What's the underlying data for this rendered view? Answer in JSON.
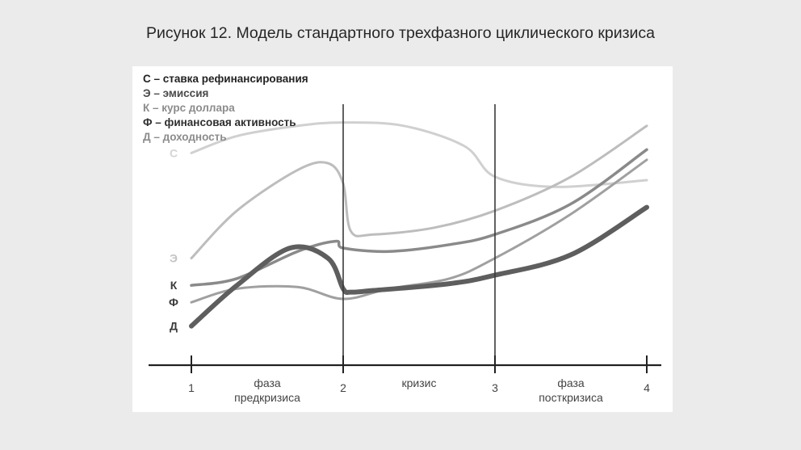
{
  "page": {
    "title": "Рисунок 12. Модель стандартного трехфазного циклического кризиса"
  },
  "colors": {
    "C": "#d0d0d0",
    "E": "#bdbdbd",
    "K": "#8a8a8a",
    "F": "#a0a0a0",
    "D": "#5e5e5e",
    "axis": "#222222"
  },
  "chart_data": {
    "type": "line",
    "title": "Рисунок 12. Модель стандартного трехфазного циклического кризиса",
    "xlim": [
      1,
      4
    ],
    "x_ticks": [
      "1",
      "2",
      "3",
      "4"
    ],
    "phase_labels": [
      {
        "line1": "фаза",
        "line2": "предкризиса"
      },
      {
        "line1": "кризис",
        "line2": ""
      },
      {
        "line1": "фаза",
        "line2": "посткризиса"
      }
    ],
    "legend": [
      {
        "key": "C",
        "text": "С – ставка рефинансирования"
      },
      {
        "key": "E",
        "text": "Э – эмиссия"
      },
      {
        "key": "K",
        "text": "К – курс доллара"
      },
      {
        "key": "F",
        "text": "Ф – финансовая активность"
      },
      {
        "key": "D",
        "text": "Д – доходность"
      }
    ],
    "series": [
      {
        "key": "C",
        "name": "С",
        "x": [
          1,
          1.3,
          1.7,
          2,
          2.4,
          2.8,
          3,
          3.4,
          4
        ],
        "y": [
          5.3,
          5.8,
          6.1,
          6.2,
          6.1,
          5.5,
          4.6,
          4.3,
          4.5
        ]
      },
      {
        "key": "E",
        "name": "Э",
        "x": [
          1,
          1.3,
          1.7,
          1.9,
          2,
          2.05,
          2.2,
          2.6,
          3,
          3.5,
          4
        ],
        "y": [
          2.2,
          3.6,
          4.8,
          5.0,
          4.4,
          3.0,
          2.9,
          3.1,
          3.6,
          4.6,
          6.1
        ]
      },
      {
        "key": "K",
        "name": "К",
        "x": [
          1,
          1.3,
          1.7,
          1.95,
          2,
          2.3,
          2.7,
          3,
          3.5,
          4
        ],
        "y": [
          1.4,
          1.6,
          2.4,
          2.7,
          2.5,
          2.4,
          2.6,
          2.9,
          3.8,
          5.4
        ]
      },
      {
        "key": "F",
        "name": "Ф",
        "x": [
          1,
          1.3,
          1.7,
          2,
          2.3,
          2.7,
          3,
          3.5,
          4
        ],
        "y": [
          0.9,
          1.3,
          1.35,
          1.0,
          1.3,
          1.6,
          2.2,
          3.5,
          5.1
        ]
      },
      {
        "key": "D",
        "name": "Д",
        "x": [
          1,
          1.3,
          1.65,
          1.9,
          2,
          2.05,
          2.2,
          2.7,
          3,
          3.5,
          4
        ],
        "y": [
          0.2,
          1.4,
          2.5,
          2.2,
          1.3,
          1.2,
          1.25,
          1.45,
          1.7,
          2.3,
          3.7
        ]
      }
    ]
  }
}
